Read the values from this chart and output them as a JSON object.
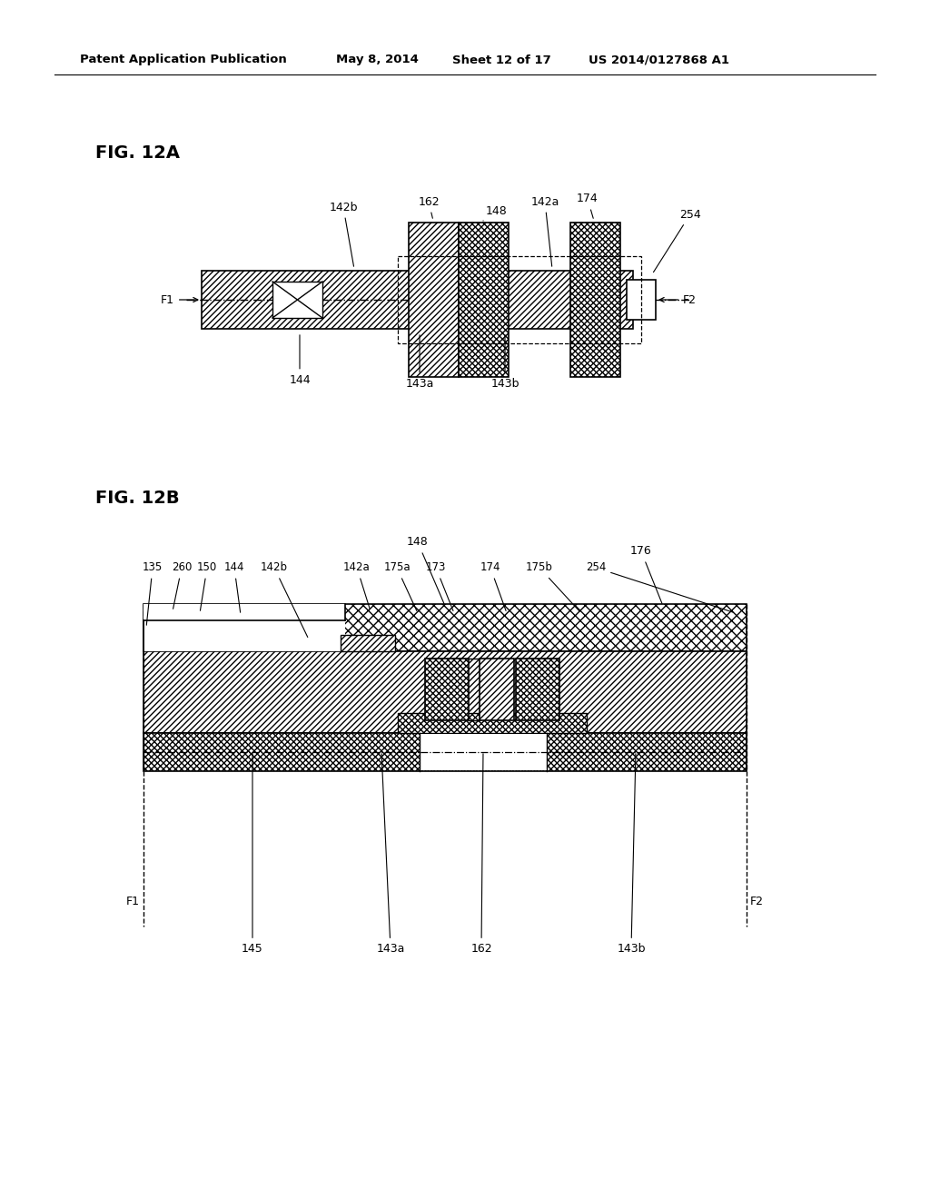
{
  "bg_color": "#ffffff",
  "header_text": "Patent Application Publication",
  "header_date": "May 8, 2014",
  "header_sheet": "Sheet 12 of 17",
  "header_patent": "US 2014/0127868 A1",
  "fig12a_label": "FIG. 12A",
  "fig12b_label": "FIG. 12B"
}
